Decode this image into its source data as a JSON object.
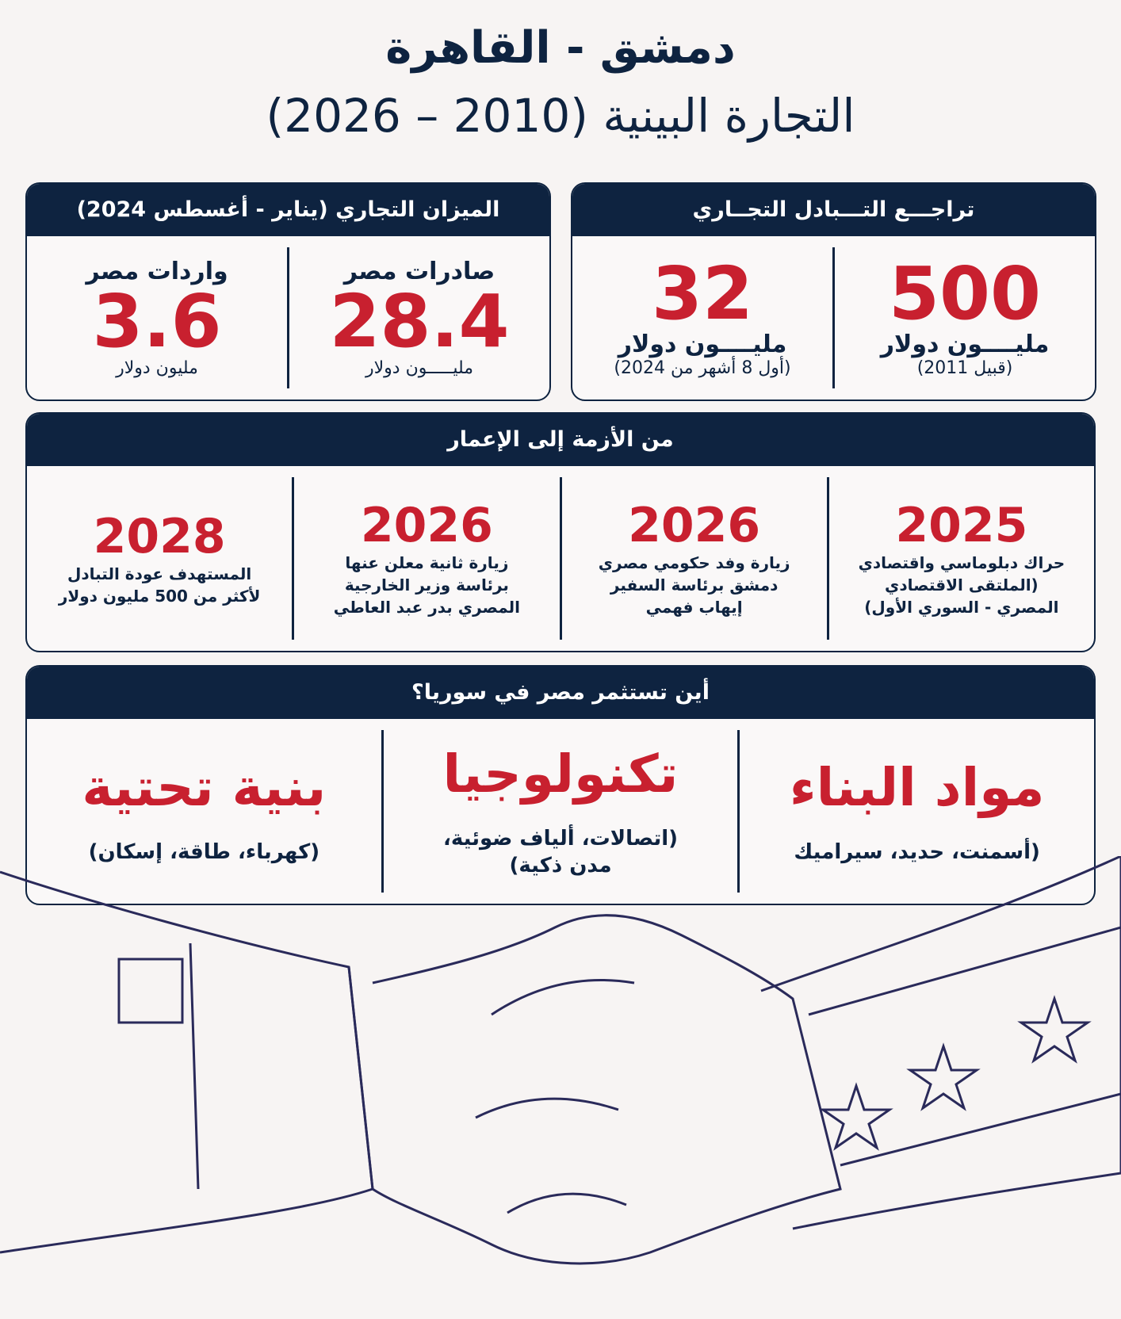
{
  "header": {
    "title": "دمشق - القاهرة",
    "subtitle": "التجارة البينية (2010 – 2026)"
  },
  "decline": {
    "title": "تراجـــع التـــبادل التجــاري",
    "items": [
      {
        "value": "500",
        "unit": "مليــــون دولار",
        "note": "(قبيل 2011)"
      },
      {
        "value": "32",
        "unit": "مليــــون دولار",
        "note": "(أول 8 أشهر من 2024)"
      }
    ]
  },
  "balance": {
    "title": "الميزان التجاري (يناير - أغسطس 2024)",
    "items": [
      {
        "label": "صادرات مصر",
        "value": "28.4",
        "unit": "مليـــــون دولار"
      },
      {
        "label": "واردات مصر",
        "value": "3.6",
        "unit": "مليون دولار"
      }
    ]
  },
  "timeline": {
    "title": "من الأزمة إلى الإعمار",
    "items": [
      {
        "year": "2025",
        "lines": [
          "حراك دبلوماسي واقتصادي",
          "(الملتقى الاقتصادي",
          "المصري - السوري الأول)"
        ]
      },
      {
        "year": "2026",
        "lines": [
          "زيارة وفد حكومي مصري",
          "دمشق برئاسة السفير",
          "إيهاب فهمي"
        ]
      },
      {
        "year": "2026",
        "lines": [
          "زيارة ثانية معلن عنها",
          "برئاسة وزير الخارجية",
          "المصري بدر عبد العاطي"
        ]
      },
      {
        "year": "2028",
        "lines": [
          "المستهدف عودة التبادل",
          "لأكثر من 500 مليون دولار"
        ]
      }
    ]
  },
  "invest": {
    "title": "أين تستثمر مصر في سوريا؟",
    "items": [
      {
        "sector": "مواد البناء",
        "lines": [
          "(أسمنت، حديد، سيراميك"
        ]
      },
      {
        "sector": "تكنولوجيا",
        "lines": [
          "(اتصالات، ألياف ضوئية،",
          "مدن ذكية)"
        ]
      },
      {
        "sector": "بنية تحتية",
        "lines": [
          "(كهرباء، طاقة، إسكان)"
        ]
      }
    ]
  }
}
